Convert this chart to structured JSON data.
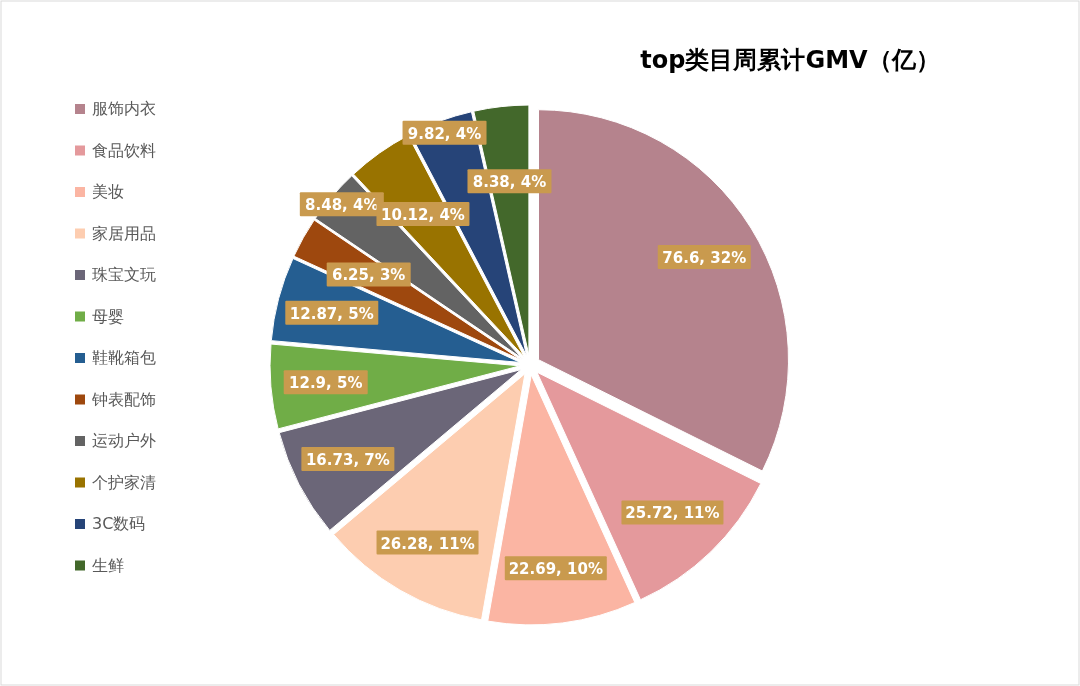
{
  "chart_data": {
    "type": "pie",
    "title": "top类目周累计GMV（亿）",
    "categories": [
      "服饰内衣",
      "食品饮料",
      "美妆",
      "家居用品",
      "珠宝文玩",
      "母婴",
      "鞋靴箱包",
      "钟表配饰",
      "运动户外",
      "个护家清",
      "3C数码",
      "生鲜"
    ],
    "values": [
      76.6,
      25.72,
      22.69,
      26.28,
      16.73,
      12.9,
      12.87,
      6.25,
      8.48,
      10.12,
      9.82,
      8.38
    ],
    "value_labels": [
      "76.6, 32%",
      "25.72, 11%",
      "22.69, 10%",
      "26.28, 11%",
      "16.73, 7%",
      "12.9, 5%",
      "12.87, 5%",
      "6.25, 3%",
      "8.48, 4%",
      "10.12, 4%",
      "9.82, 4%",
      "8.38, 4%"
    ],
    "colors": [
      "#b5838d",
      "#e4999c",
      "#fbb5a3",
      "#fdcdb0",
      "#6b6678",
      "#70ad47",
      "#255e91",
      "#9e480e",
      "#636363",
      "#997300",
      "#264478",
      "#43682b"
    ],
    "legend": "left"
  }
}
